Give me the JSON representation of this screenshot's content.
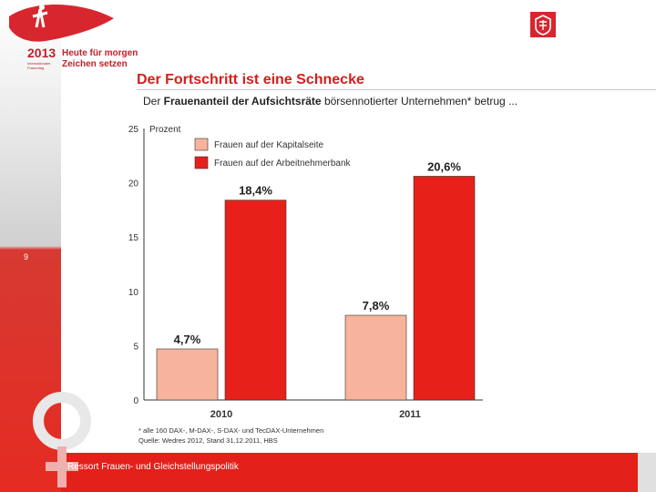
{
  "branding": {
    "year": "2013",
    "tagline_line1": "Heute für morgen",
    "tagline_line2": "Zeichen setzen",
    "small_caption": "Internationaler Frauentag"
  },
  "title": "Der Fortschritt ist eine Schnecke",
  "subtitle": {
    "prefix": "Der ",
    "bold": "Frauenanteil der Aufsichtsräte",
    "suffix": " börsennotierter Unternehmen* betrug ..."
  },
  "page_number": "9",
  "footer": "Ressort Frauen- und Gleichstellungspolitik",
  "colors": {
    "accent_red": "#e3201a",
    "title_red": "#d4201a",
    "bar_salmon": "#f7b39b",
    "bar_red": "#e8201a"
  },
  "chart_data": {
    "type": "bar",
    "title": "",
    "ylabel": "Prozent",
    "xlabel": "",
    "ylim": [
      0,
      25
    ],
    "yticks": [
      "0",
      "5",
      "10",
      "15",
      "20",
      "25"
    ],
    "categories": [
      "2010",
      "2011"
    ],
    "series": [
      {
        "name": "Frauen auf der Kapitalseite",
        "color": "#f7b39b",
        "values": [
          4.7,
          7.8
        ],
        "labels": [
          "4,7%",
          "7,8%"
        ]
      },
      {
        "name": "Frauen auf der Arbeitnehmerbank",
        "color": "#e8201a",
        "values": [
          18.4,
          20.6
        ],
        "labels": [
          "18,4%",
          "20,6%"
        ]
      }
    ],
    "footnote_line1": "* alle 160 DAX-, M-DAX-, S-DAX- und TecDAX-Unternehmen",
    "footnote_line2": "Quelle: Wedres 2012, Stand 31.12.2011, HBS"
  }
}
